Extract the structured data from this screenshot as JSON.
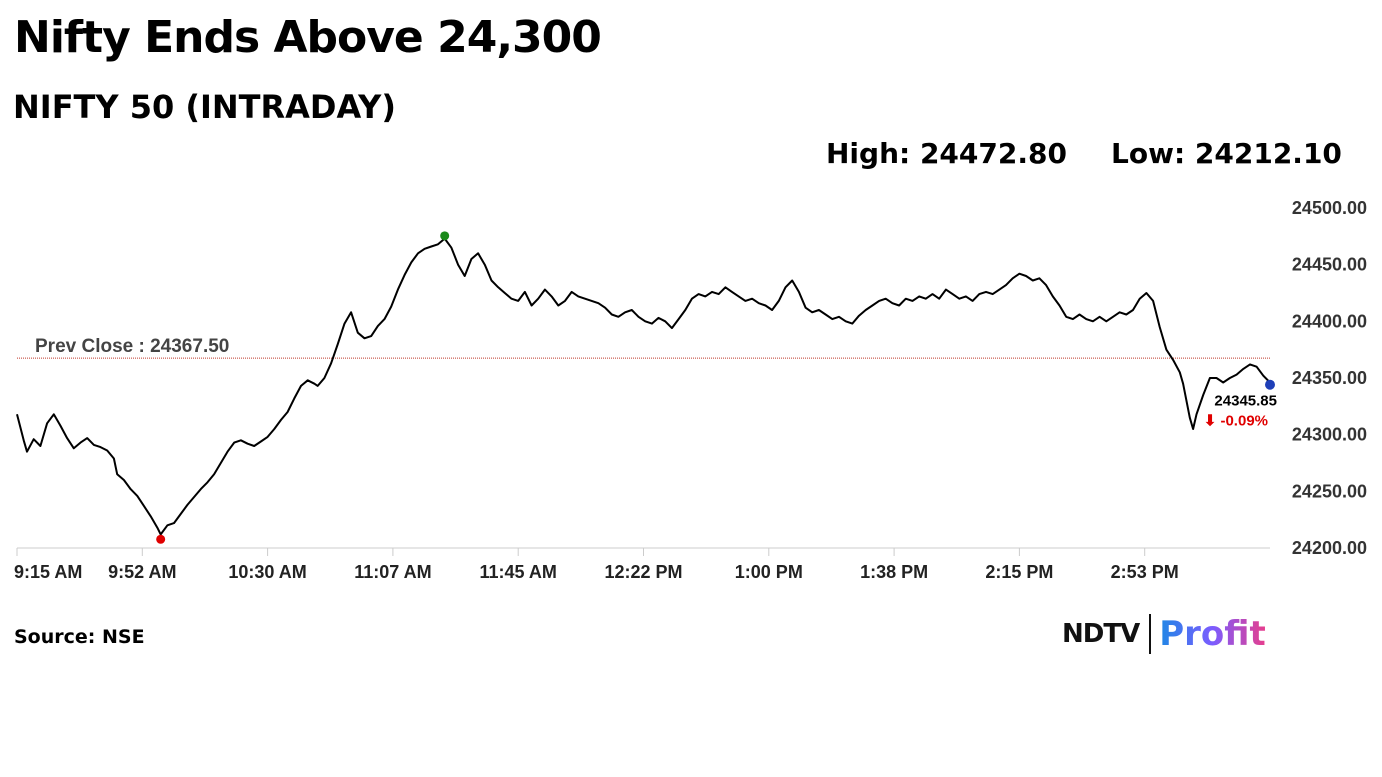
{
  "title": "Nifty Ends Above 24,300",
  "subtitle": "NIFTY 50 (INTRADAY)",
  "stats": {
    "high": "High: 24472.80",
    "low": "Low: 24212.10"
  },
  "source": "Source: NSE",
  "logo": {
    "left": "NDTV",
    "right": "Profit"
  },
  "colors": {
    "line": "#000000",
    "prev_close": "#c0392b",
    "high_dot": "#1a8a1a",
    "low_dot": "#e00000",
    "last_dot": "#1f3fb8",
    "down": "#e00000"
  },
  "chart_data": {
    "type": "line",
    "ylim": [
      24200,
      24500
    ],
    "yticks": [
      "24200.00",
      "24250.00",
      "24300.00",
      "24350.00",
      "24400.00",
      "24450.00",
      "24500.00"
    ],
    "xticks": [
      "9:15 AM",
      "9:52 AM",
      "10:30 AM",
      "11:07 AM",
      "11:45 AM",
      "12:22 PM",
      "1:00 PM",
      "1:38 PM",
      "2:15 PM",
      "2:53 PM"
    ],
    "x_start_min": 555,
    "x_end_min": 930,
    "prev_close": 24367.5,
    "prev_close_label": "Prev Close : 24367.50",
    "last_value_label": "24345.85",
    "change_label": "⬇ -0.09%",
    "high_point": {
      "time_min": 683,
      "value": 24472.8
    },
    "low_point": {
      "time_min": 598,
      "value": 24212.1
    },
    "last_point": {
      "time_min": 930,
      "value": 24345.85
    },
    "series": [
      {
        "points": [
          [
            555,
            24318
          ],
          [
            557,
            24295
          ],
          [
            558,
            24285
          ],
          [
            560,
            24296
          ],
          [
            562,
            24290
          ],
          [
            564,
            24310
          ],
          [
            566,
            24318
          ],
          [
            568,
            24308
          ],
          [
            570,
            24297
          ],
          [
            572,
            24288
          ],
          [
            574,
            24293
          ],
          [
            576,
            24297
          ],
          [
            578,
            24291
          ],
          [
            580,
            24289
          ],
          [
            582,
            24286
          ],
          [
            584,
            24279
          ],
          [
            585,
            24265
          ],
          [
            587,
            24260
          ],
          [
            589,
            24252
          ],
          [
            591,
            24246
          ],
          [
            593,
            24237
          ],
          [
            595,
            24228
          ],
          [
            597,
            24218
          ],
          [
            598,
            24212
          ],
          [
            600,
            24220
          ],
          [
            602,
            24222
          ],
          [
            604,
            24230
          ],
          [
            606,
            24238
          ],
          [
            608,
            24245
          ],
          [
            610,
            24252
          ],
          [
            612,
            24258
          ],
          [
            614,
            24265
          ],
          [
            616,
            24275
          ],
          [
            618,
            24285
          ],
          [
            620,
            24293
          ],
          [
            622,
            24295
          ],
          [
            624,
            24292
          ],
          [
            626,
            24290
          ],
          [
            628,
            24294
          ],
          [
            630,
            24298
          ],
          [
            632,
            24305
          ],
          [
            634,
            24313
          ],
          [
            636,
            24320
          ],
          [
            638,
            24332
          ],
          [
            640,
            24343
          ],
          [
            642,
            24348
          ],
          [
            644,
            24345
          ],
          [
            645,
            24343
          ],
          [
            647,
            24350
          ],
          [
            649,
            24363
          ],
          [
            651,
            24380
          ],
          [
            653,
            24398
          ],
          [
            655,
            24408
          ],
          [
            657,
            24390
          ],
          [
            659,
            24385
          ],
          [
            661,
            24387
          ],
          [
            663,
            24396
          ],
          [
            665,
            24402
          ],
          [
            667,
            24413
          ],
          [
            669,
            24428
          ],
          [
            671,
            24441
          ],
          [
            673,
            24452
          ],
          [
            675,
            24460
          ],
          [
            677,
            24464
          ],
          [
            679,
            24466
          ],
          [
            681,
            24468
          ],
          [
            683,
            24473
          ],
          [
            685,
            24465
          ],
          [
            687,
            24450
          ],
          [
            689,
            24440
          ],
          [
            691,
            24455
          ],
          [
            693,
            24460
          ],
          [
            695,
            24450
          ],
          [
            697,
            24436
          ],
          [
            699,
            24430
          ],
          [
            701,
            24425
          ],
          [
            703,
            24420
          ],
          [
            705,
            24418
          ],
          [
            707,
            24426
          ],
          [
            709,
            24414
          ],
          [
            711,
            24420
          ],
          [
            713,
            24428
          ],
          [
            715,
            24422
          ],
          [
            717,
            24414
          ],
          [
            719,
            24418
          ],
          [
            721,
            24426
          ],
          [
            723,
            24422
          ],
          [
            725,
            24420
          ],
          [
            727,
            24418
          ],
          [
            729,
            24416
          ],
          [
            731,
            24412
          ],
          [
            733,
            24406
          ],
          [
            735,
            24404
          ],
          [
            737,
            24408
          ],
          [
            739,
            24410
          ],
          [
            741,
            24404
          ],
          [
            743,
            24400
          ],
          [
            745,
            24398
          ],
          [
            747,
            24403
          ],
          [
            749,
            24400
          ],
          [
            751,
            24394
          ],
          [
            753,
            24402
          ],
          [
            755,
            24410
          ],
          [
            757,
            24420
          ],
          [
            759,
            24424
          ],
          [
            761,
            24422
          ],
          [
            763,
            24426
          ],
          [
            765,
            24424
          ],
          [
            767,
            24430
          ],
          [
            769,
            24426
          ],
          [
            771,
            24422
          ],
          [
            773,
            24418
          ],
          [
            775,
            24420
          ],
          [
            777,
            24416
          ],
          [
            779,
            24414
          ],
          [
            781,
            24410
          ],
          [
            783,
            24418
          ],
          [
            785,
            24430
          ],
          [
            787,
            24436
          ],
          [
            789,
            24426
          ],
          [
            791,
            24412
          ],
          [
            793,
            24408
          ],
          [
            795,
            24410
          ],
          [
            797,
            24406
          ],
          [
            799,
            24402
          ],
          [
            801,
            24404
          ],
          [
            803,
            24400
          ],
          [
            805,
            24398
          ],
          [
            807,
            24405
          ],
          [
            809,
            24410
          ],
          [
            811,
            24414
          ],
          [
            813,
            24418
          ],
          [
            815,
            24420
          ],
          [
            817,
            24416
          ],
          [
            819,
            24414
          ],
          [
            821,
            24420
          ],
          [
            823,
            24418
          ],
          [
            825,
            24422
          ],
          [
            827,
            24420
          ],
          [
            829,
            24424
          ],
          [
            831,
            24420
          ],
          [
            833,
            24428
          ],
          [
            835,
            24424
          ],
          [
            837,
            24420
          ],
          [
            839,
            24422
          ],
          [
            841,
            24418
          ],
          [
            843,
            24424
          ],
          [
            845,
            24426
          ],
          [
            847,
            24424
          ],
          [
            849,
            24428
          ],
          [
            851,
            24432
          ],
          [
            853,
            24438
          ],
          [
            855,
            24442
          ],
          [
            857,
            24440
          ],
          [
            859,
            24436
          ],
          [
            861,
            24438
          ],
          [
            863,
            24432
          ],
          [
            865,
            24422
          ],
          [
            867,
            24414
          ],
          [
            869,
            24404
          ],
          [
            871,
            24402
          ],
          [
            873,
            24406
          ],
          [
            875,
            24402
          ],
          [
            877,
            24400
          ],
          [
            879,
            24404
          ],
          [
            881,
            24400
          ],
          [
            883,
            24404
          ],
          [
            885,
            24408
          ],
          [
            887,
            24406
          ],
          [
            889,
            24410
          ],
          [
            891,
            24420
          ],
          [
            893,
            24425
          ],
          [
            895,
            24418
          ],
          [
            897,
            24395
          ],
          [
            899,
            24375
          ],
          [
            901,
            24366
          ],
          [
            903,
            24355
          ],
          [
            904,
            24345
          ],
          [
            906,
            24315
          ],
          [
            907,
            24305
          ],
          [
            908,
            24318
          ],
          [
            910,
            24335
          ],
          [
            912,
            24350
          ],
          [
            914,
            24350
          ],
          [
            916,
            24346
          ],
          [
            918,
            24350
          ],
          [
            920,
            24353
          ],
          [
            922,
            24358
          ],
          [
            924,
            24362
          ],
          [
            926,
            24360
          ],
          [
            928,
            24352
          ],
          [
            930,
            24346
          ]
        ]
      }
    ]
  }
}
